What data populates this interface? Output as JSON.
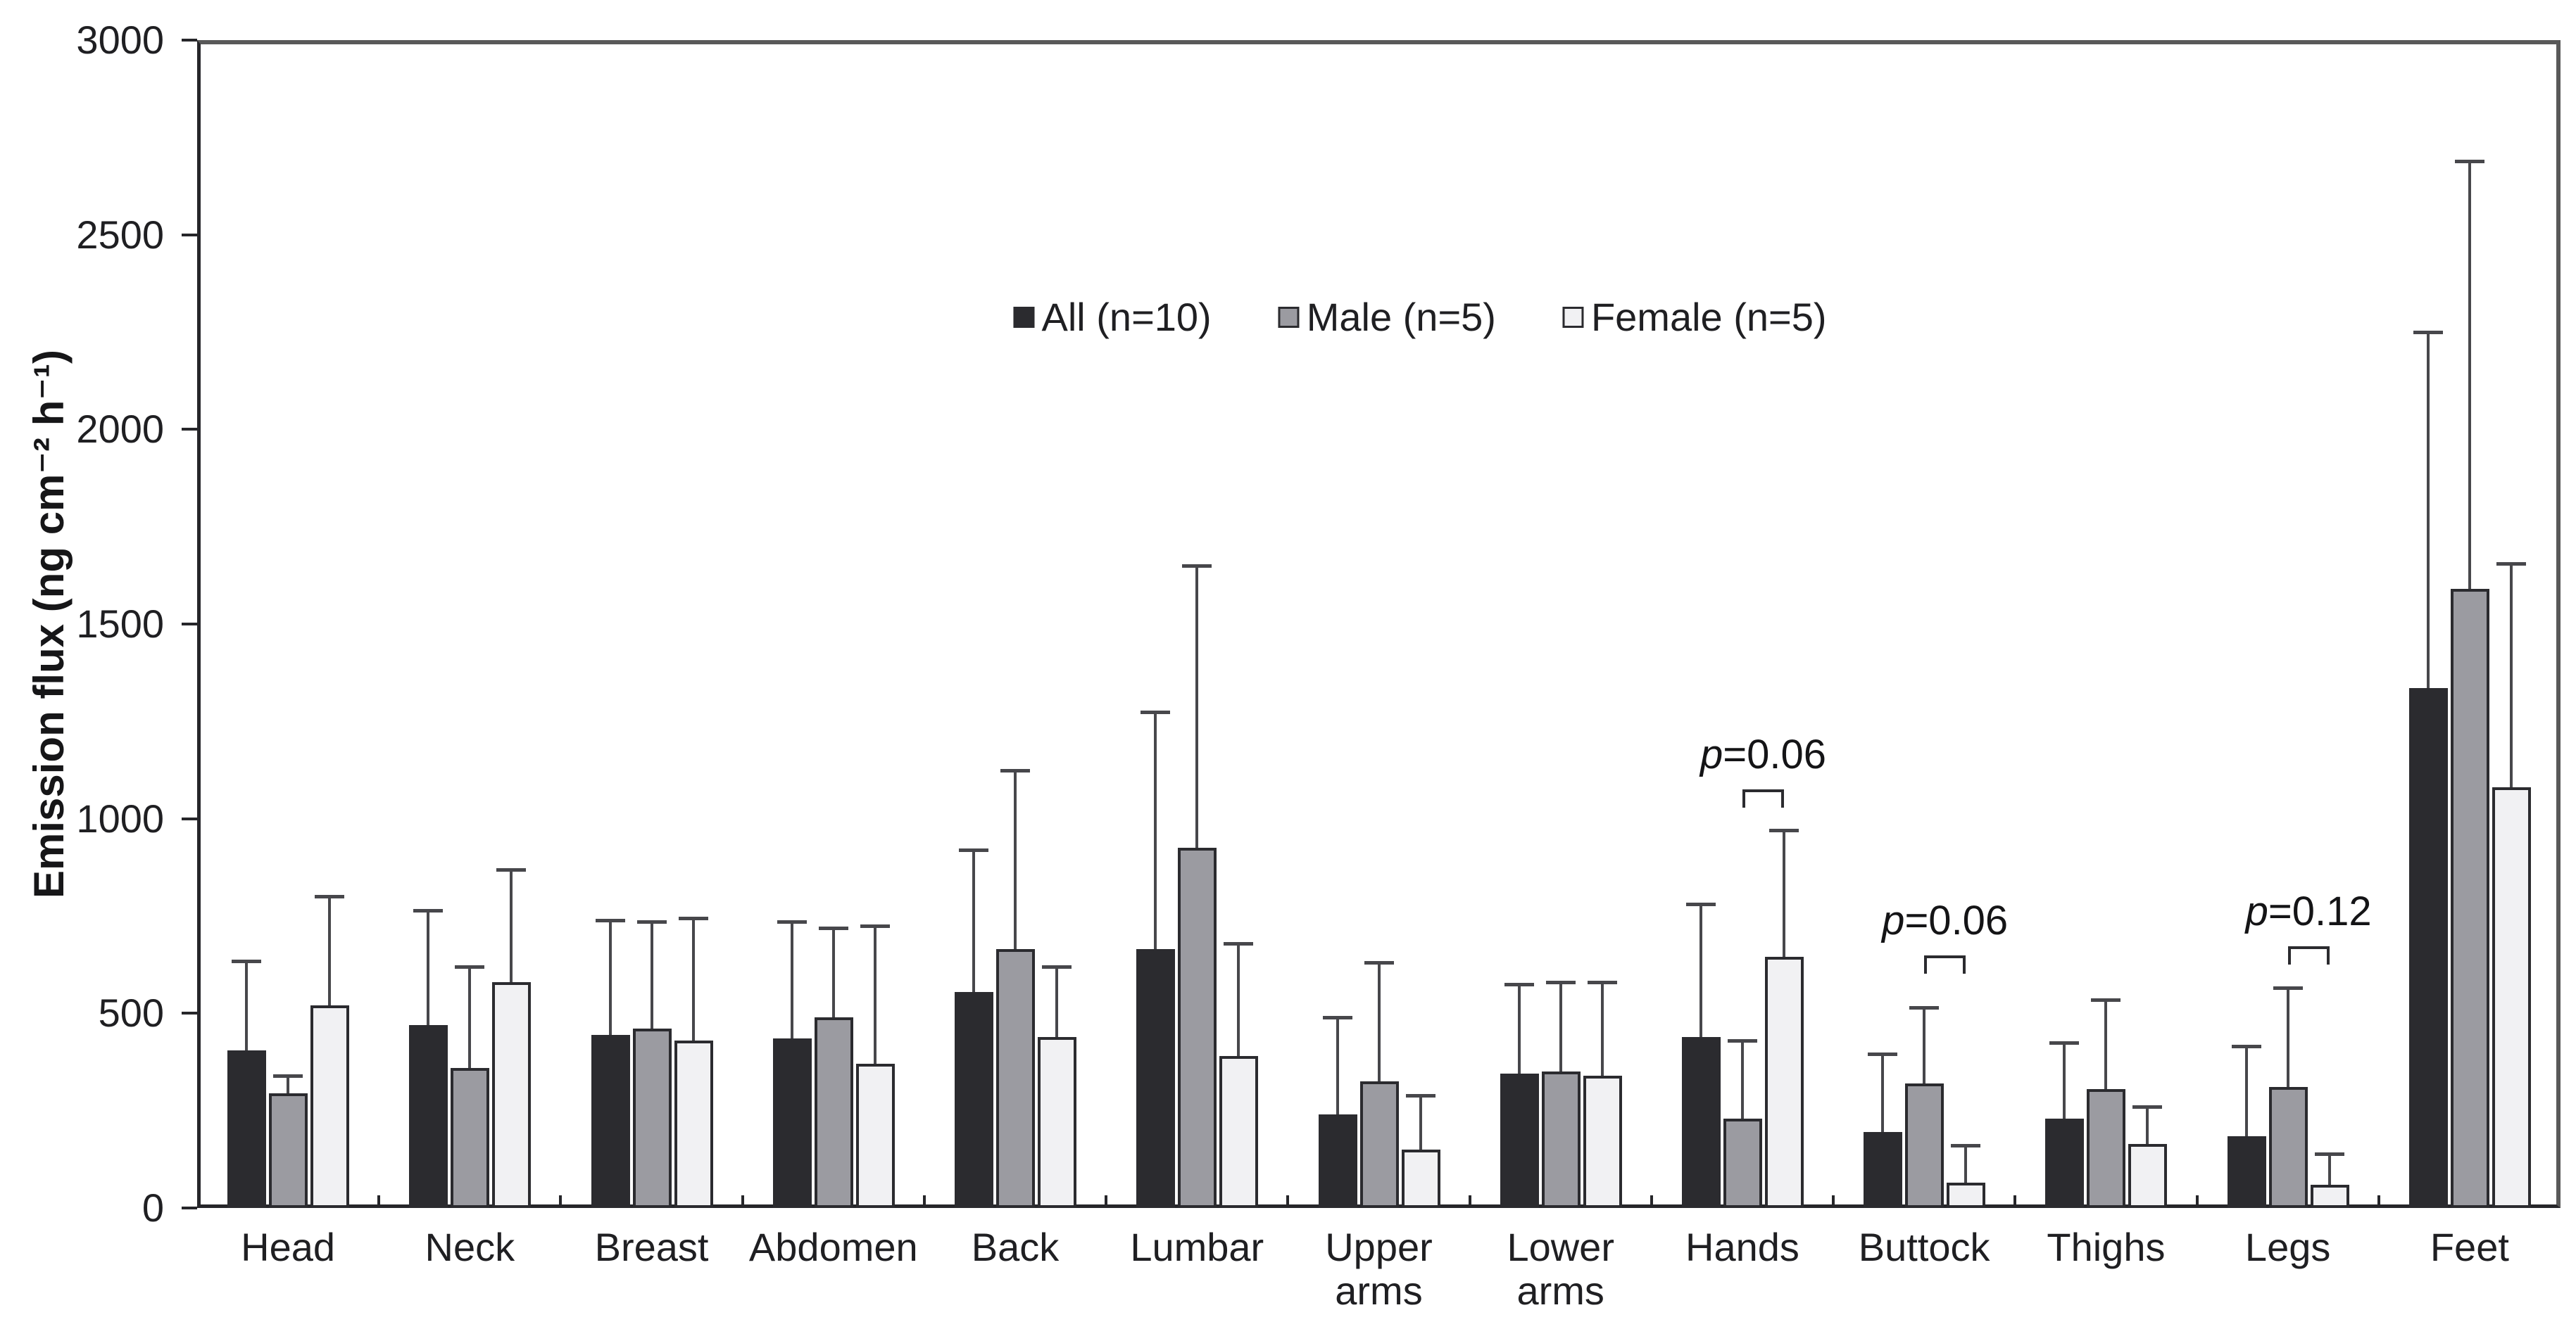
{
  "figure": {
    "background": "#ffffff",
    "frame_color_dark": "#26262a",
    "frame_color_light": "#595959",
    "error_bar_color": "#47474b"
  },
  "chart_data": {
    "type": "bar",
    "title": "",
    "xlabel": "",
    "ylabel": "Emission flux (ng cm⁻² h⁻¹)",
    "ylim": [
      0,
      3000
    ],
    "yticks": [
      0,
      500,
      1000,
      1500,
      2000,
      2500,
      3000
    ],
    "grid": false,
    "legend_position": "top-center-inside",
    "categories": [
      "Head",
      "Neck",
      "Breast",
      "Abdomen",
      "Back",
      "Lumbar",
      "Upper arms",
      "Lower arms",
      "Hands",
      "Buttock",
      "Thighs",
      "Legs",
      "Feet"
    ],
    "series": [
      {
        "name": "All (n=10)",
        "color": "#2b2b2f",
        "border_color": "#2b2b2f",
        "values": [
          405,
          470,
          445,
          435,
          555,
          665,
          240,
          345,
          440,
          195,
          230,
          185,
          1335
        ],
        "error_top": [
          635,
          765,
          740,
          735,
          920,
          1275,
          490,
          575,
          780,
          395,
          425,
          415,
          2250
        ]
      },
      {
        "name": "Male (n=5)",
        "color": "#9b9ba1",
        "border_color": "#2b2b2f",
        "values": [
          295,
          360,
          460,
          490,
          665,
          925,
          325,
          350,
          230,
          320,
          305,
          310,
          1590
        ],
        "error_top": [
          340,
          620,
          735,
          720,
          1125,
          1650,
          630,
          580,
          430,
          515,
          535,
          565,
          2690
        ]
      },
      {
        "name": "Female (n=5)",
        "color": "#f1f1f3",
        "border_color": "#2b2b2f",
        "values": [
          520,
          580,
          430,
          370,
          440,
          390,
          150,
          340,
          645,
          65,
          165,
          60,
          1080
        ],
        "error_top": [
          800,
          870,
          745,
          725,
          620,
          680,
          290,
          580,
          970,
          160,
          260,
          140,
          1655
        ]
      }
    ],
    "annotations": [
      {
        "text": "p=0.06",
        "category": "Hands",
        "between": [
          "Male (n=5)",
          "Female (n=5)"
        ],
        "bracket_value": 1075
      },
      {
        "text": "p=0.06",
        "category": "Buttock",
        "between": [
          "Male (n=5)",
          "Female (n=5)"
        ],
        "bracket_value": 648
      },
      {
        "text": "p=0.12",
        "category": "Legs",
        "between": [
          "Male (n=5)",
          "Female (n=5)"
        ],
        "bracket_value": 672
      }
    ]
  }
}
